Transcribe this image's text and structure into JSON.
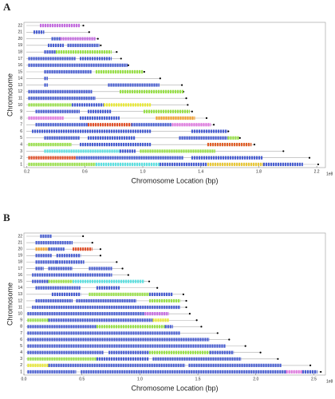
{
  "chart_data": [
    {
      "type": "chromosome",
      "panel": "A",
      "ylabel": "Chromosome",
      "xlabel": "Chromosome Location (bp)",
      "exponent": "1e8",
      "xlim": [
        0.18,
        2.26
      ],
      "xticks": [
        0.2,
        0.6,
        {
          "value": 1,
          "label": "1.0"
        },
        1.4,
        1.8,
        2.2
      ],
      "rows": [
        {
          "label": "1",
          "length": 2.21,
          "segments": [
            {
              "start": 0.21,
              "end": 0.675,
              "color": "#99e04a"
            },
            {
              "start": 0.675,
              "end": 1.115,
              "color": "#5ee0e0"
            },
            {
              "start": 1.115,
              "end": 1.445,
              "color": "#4a5fd0"
            },
            {
              "start": 1.445,
              "end": 1.83,
              "color": "#e8c83a"
            },
            {
              "start": 1.83,
              "end": 2.105,
              "color": "#4a5fd0"
            }
          ]
        },
        {
          "label": "2",
          "length": 2.15,
          "segments": [
            {
              "start": 0.21,
              "end": 0.54,
              "color": "#e0502a"
            },
            {
              "start": 0.54,
              "end": 1.28,
              "color": "#4a5fd0"
            },
            {
              "start": 1.335,
              "end": 1.83,
              "color": "#4a5fd0"
            }
          ]
        },
        {
          "label": "3",
          "length": 1.97,
          "segments": [
            {
              "start": 0.32,
              "end": 0.84,
              "color": "#5ee0e0"
            },
            {
              "start": 0.84,
              "end": 0.95,
              "color": "#4a5fd0"
            },
            {
              "start": 0.98,
              "end": 1.5,
              "color": "#99e04a"
            }
          ]
        },
        {
          "label": "4",
          "length": 1.77,
          "segments": [
            {
              "start": 0.21,
              "end": 0.51,
              "color": "#99e04a"
            },
            {
              "start": 0.565,
              "end": 1.06,
              "color": "#4a5fd0"
            },
            {
              "start": 1.445,
              "end": 1.75,
              "color": "#e0602a"
            }
          ]
        },
        {
          "label": "5",
          "length": 1.67,
          "segments": [
            {
              "start": 0.32,
              "end": 0.565,
              "color": "#4a5fd0"
            },
            {
              "start": 0.62,
              "end": 0.95,
              "color": "#4a5fd0"
            },
            {
              "start": 1.25,
              "end": 1.585,
              "color": "#4a5fd0"
            },
            {
              "start": 1.585,
              "end": 1.665,
              "color": "#99e04a"
            }
          ]
        },
        {
          "label": "6",
          "length": 1.59,
          "segments": [
            {
              "start": 0.235,
              "end": 1.06,
              "color": "#4a5fd0"
            },
            {
              "start": 1.335,
              "end": 1.585,
              "color": "#4a5fd0"
            }
          ]
        },
        {
          "label": "7",
          "length": 1.49,
          "segments": [
            {
              "start": 0.26,
              "end": 0.62,
              "color": "#4a5fd0"
            },
            {
              "start": 0.62,
              "end": 0.92,
              "color": "#e0502a"
            },
            {
              "start": 0.92,
              "end": 1.2,
              "color": "#4a5fd0"
            },
            {
              "start": 1.2,
              "end": 1.47,
              "color": "#e07ae0"
            }
          ]
        },
        {
          "label": "8",
          "length": 1.44,
          "segments": [
            {
              "start": 0.21,
              "end": 0.455,
              "color": "#e07ae0"
            },
            {
              "start": 0.565,
              "end": 0.84,
              "color": "#4a5fd0"
            },
            {
              "start": 1.09,
              "end": 1.36,
              "color": "#f0a030"
            }
          ]
        },
        {
          "label": "9",
          "length": 1.34,
          "segments": [
            {
              "start": 0.26,
              "end": 0.565,
              "color": "#4a5fd0"
            },
            {
              "start": 0.62,
              "end": 0.785,
              "color": "#4a5fd0"
            },
            {
              "start": 1.005,
              "end": 1.325,
              "color": "#99e04a"
            }
          ]
        },
        {
          "label": "10",
          "length": 1.31,
          "segments": [
            {
              "start": 0.21,
              "end": 0.51,
              "color": "#99e04a"
            },
            {
              "start": 0.51,
              "end": 0.73,
              "color": "#4a5fd0"
            },
            {
              "start": 0.73,
              "end": 1.06,
              "color": "#e8e83a"
            }
          ]
        },
        {
          "label": "11",
          "length": 1.3,
          "segments": [
            {
              "start": 0.21,
              "end": 0.675,
              "color": "#4a5fd0"
            }
          ]
        },
        {
          "label": "12",
          "length": 1.28,
          "segments": [
            {
              "start": 0.21,
              "end": 0.65,
              "color": "#4a5fd0"
            },
            {
              "start": 0.84,
              "end": 1.28,
              "color": "#99e04a"
            }
          ]
        },
        {
          "label": "13",
          "length": 1.27,
          "segments": [
            {
              "start": 0.32,
              "end": 0.345,
              "color": "#4a5fd0"
            },
            {
              "start": 0.76,
              "end": 1.115,
              "color": "#4a5fd0"
            }
          ]
        },
        {
          "label": "14",
          "length": 1.12,
          "segments": [
            {
              "start": 0.32,
              "end": 0.345,
              "color": "#4a5fd0"
            }
          ]
        },
        {
          "label": "15",
          "length": 1.01,
          "segments": [
            {
              "start": 0.32,
              "end": 0.65,
              "color": "#4a5fd0"
            },
            {
              "start": 0.675,
              "end": 1.005,
              "color": "#99e04a"
            }
          ]
        },
        {
          "label": "16",
          "length": 0.9,
          "segments": [
            {
              "start": 0.21,
              "end": 0.895,
              "color": "#4a5fd0"
            }
          ]
        },
        {
          "label": "17",
          "length": 0.85,
          "segments": [
            {
              "start": 0.21,
              "end": 0.54,
              "color": "#4a5fd0"
            },
            {
              "start": 0.565,
              "end": 0.785,
              "color": "#4a5fd0"
            }
          ]
        },
        {
          "label": "18",
          "length": 0.82,
          "segments": [
            {
              "start": 0.32,
              "end": 0.4,
              "color": "#4a5fd0"
            },
            {
              "start": 0.4,
              "end": 0.785,
              "color": "#99e04a"
            }
          ]
        },
        {
          "label": "19",
          "length": 0.71,
          "segments": [
            {
              "start": 0.345,
              "end": 0.455,
              "color": "#4a5fd0"
            },
            {
              "start": 0.48,
              "end": 0.7,
              "color": "#4a5fd0"
            }
          ]
        },
        {
          "label": "20",
          "length": 0.69,
          "segments": [
            {
              "start": 0.37,
              "end": 0.43,
              "color": "#4a5fd0"
            },
            {
              "start": 0.43,
              "end": 0.675,
              "color": "#c46be0"
            }
          ]
        },
        {
          "label": "21",
          "length": 0.63,
          "segments": [
            {
              "start": 0.246,
              "end": 0.32,
              "color": "#4a5fd0"
            }
          ]
        },
        {
          "label": "22",
          "length": 0.59,
          "segments": [
            {
              "start": 0.29,
              "end": 0.565,
              "color": "#c46be0"
            }
          ]
        }
      ]
    },
    {
      "type": "chromosome",
      "panel": "B",
      "ylabel": "Chromosome",
      "xlabel": "Chromosome Location (bp)",
      "exponent": "1e8",
      "xlim": [
        0,
        2.6
      ],
      "xticks": [
        {
          "value": 0,
          "label": "0.0"
        },
        0.5,
        {
          "value": 1,
          "label": "1.0"
        },
        1.5,
        {
          "value": 2,
          "label": "2.0"
        },
        2.5
      ],
      "rows": [
        {
          "label": "1",
          "length": 2.56,
          "segments": [
            {
              "start": 0.03,
              "end": 0.45,
              "color": "#4a5fd0"
            },
            {
              "start": 0.49,
              "end": 2.26,
              "color": "#4a5fd0"
            },
            {
              "start": 2.26,
              "end": 2.4,
              "color": "#e07ae0"
            },
            {
              "start": 2.4,
              "end": 2.53,
              "color": "#4a5fd0"
            }
          ]
        },
        {
          "label": "2",
          "length": 2.47,
          "segments": [
            {
              "start": 0.03,
              "end": 0.21,
              "color": "#e8e83a"
            },
            {
              "start": 0.21,
              "end": 1.39,
              "color": "#4a5fd0"
            },
            {
              "start": 1.42,
              "end": 2.22,
              "color": "#4a5fd0"
            }
          ]
        },
        {
          "label": "3",
          "length": 2.19,
          "segments": [
            {
              "start": 0.03,
              "end": 0.625,
              "color": "#99e04a"
            },
            {
              "start": 0.625,
              "end": 1.08,
              "color": "#4a5fd0"
            },
            {
              "start": 1.11,
              "end": 1.875,
              "color": "#4a5fd0"
            }
          ]
        },
        {
          "label": "4",
          "length": 2.04,
          "segments": [
            {
              "start": 0.03,
              "end": 0.69,
              "color": "#4a5fd0"
            },
            {
              "start": 0.73,
              "end": 1.08,
              "color": "#4a5fd0"
            },
            {
              "start": 1.08,
              "end": 1.6,
              "color": "#99e04a"
            },
            {
              "start": 1.6,
              "end": 1.81,
              "color": "#4a5fd0"
            }
          ]
        },
        {
          "label": "5",
          "length": 1.91,
          "segments": [
            {
              "start": 0.03,
              "end": 1.74,
              "color": "#4a5fd0"
            }
          ]
        },
        {
          "label": "6",
          "length": 1.77,
          "segments": [
            {
              "start": 0.03,
              "end": 1.6,
              "color": "#4a5fd0"
            }
          ]
        },
        {
          "label": "7",
          "length": 1.67,
          "segments": [
            {
              "start": 0.03,
              "end": 1.35,
              "color": "#4a5fd0"
            }
          ]
        },
        {
          "label": "8",
          "length": 1.53,
          "segments": [
            {
              "start": 0.03,
              "end": 0.625,
              "color": "#4a5fd0"
            },
            {
              "start": 0.625,
              "end": 1.215,
              "color": "#99e04a"
            },
            {
              "start": 1.215,
              "end": 1.285,
              "color": "#4a5fd0"
            }
          ]
        },
        {
          "label": "9",
          "length": 1.49,
          "segments": [
            {
              "start": 0.03,
              "end": 0.21,
              "color": "#99e04a"
            },
            {
              "start": 0.21,
              "end": 1.11,
              "color": "#4a5fd0"
            },
            {
              "start": 1.11,
              "end": 1.25,
              "color": "#e8e83a"
            }
          ]
        },
        {
          "label": "10",
          "length": 1.43,
          "segments": [
            {
              "start": 0.03,
              "end": 1.04,
              "color": "#4a5fd0"
            },
            {
              "start": 1.04,
              "end": 1.25,
              "color": "#c46be0"
            }
          ]
        },
        {
          "label": "11",
          "length": 1.4,
          "segments": [
            {
              "start": 0.07,
              "end": 1.35,
              "color": "#4a5fd0"
            }
          ]
        },
        {
          "label": "12",
          "length": 1.4,
          "segments": [
            {
              "start": 0.1,
              "end": 0.42,
              "color": "#4a5fd0"
            },
            {
              "start": 0.45,
              "end": 0.97,
              "color": "#4a5fd0"
            },
            {
              "start": 1.08,
              "end": 1.35,
              "color": "#99e04a"
            }
          ]
        },
        {
          "label": "13",
          "length": 1.375,
          "segments": [
            {
              "start": 0.24,
              "end": 0.49,
              "color": "#4a5fd0"
            },
            {
              "start": 0.56,
              "end": 1.08,
              "color": "#99e04a"
            },
            {
              "start": 1.08,
              "end": 1.285,
              "color": "#4a5fd0"
            }
          ]
        },
        {
          "label": "14",
          "length": 1.15,
          "segments": [
            {
              "start": 0.1,
              "end": 0.49,
              "color": "#4a5fd0"
            },
            {
              "start": 0.625,
              "end": 0.83,
              "color": "#4a5fd0"
            }
          ]
        },
        {
          "label": "15",
          "length": 1.08,
          "segments": [
            {
              "start": 0.07,
              "end": 0.21,
              "color": "#4a5fd0"
            },
            {
              "start": 0.21,
              "end": 0.42,
              "color": "#99e04a"
            },
            {
              "start": 0.42,
              "end": 1.04,
              "color": "#5ee0e0"
            }
          ]
        },
        {
          "label": "16",
          "length": 0.9,
          "segments": [
            {
              "start": 0.07,
              "end": 0.76,
              "color": "#4a5fd0"
            }
          ]
        },
        {
          "label": "17",
          "length": 0.85,
          "segments": [
            {
              "start": 0.1,
              "end": 0.17,
              "color": "#4a5fd0"
            },
            {
              "start": 0.21,
              "end": 0.42,
              "color": "#4a5fd0"
            },
            {
              "start": 0.56,
              "end": 0.76,
              "color": "#4a5fd0"
            }
          ]
        },
        {
          "label": "18",
          "length": 0.8,
          "segments": [
            {
              "start": 0.1,
              "end": 0.28,
              "color": "#4a5fd0"
            },
            {
              "start": 0.28,
              "end": 0.52,
              "color": "#4a5fd0"
            }
          ]
        },
        {
          "label": "19",
          "length": 0.66,
          "segments": [
            {
              "start": 0.1,
              "end": 0.24,
              "color": "#4a5fd0"
            },
            {
              "start": 0.28,
              "end": 0.49,
              "color": "#4a5fd0"
            }
          ]
        },
        {
          "label": "20",
          "length": 0.66,
          "segments": [
            {
              "start": 0.1,
              "end": 0.21,
              "color": "#f0a030"
            },
            {
              "start": 0.21,
              "end": 0.35,
              "color": "#4a5fd0"
            },
            {
              "start": 0.42,
              "end": 0.59,
              "color": "#e0502a"
            }
          ]
        },
        {
          "label": "21",
          "length": 0.59,
          "segments": [
            {
              "start": 0.1,
              "end": 0.42,
              "color": "#4a5fd0"
            }
          ]
        },
        {
          "label": "22",
          "length": 0.51,
          "segments": [
            {
              "start": 0.14,
              "end": 0.24,
              "color": "#4a5fd0"
            }
          ]
        }
      ]
    }
  ]
}
